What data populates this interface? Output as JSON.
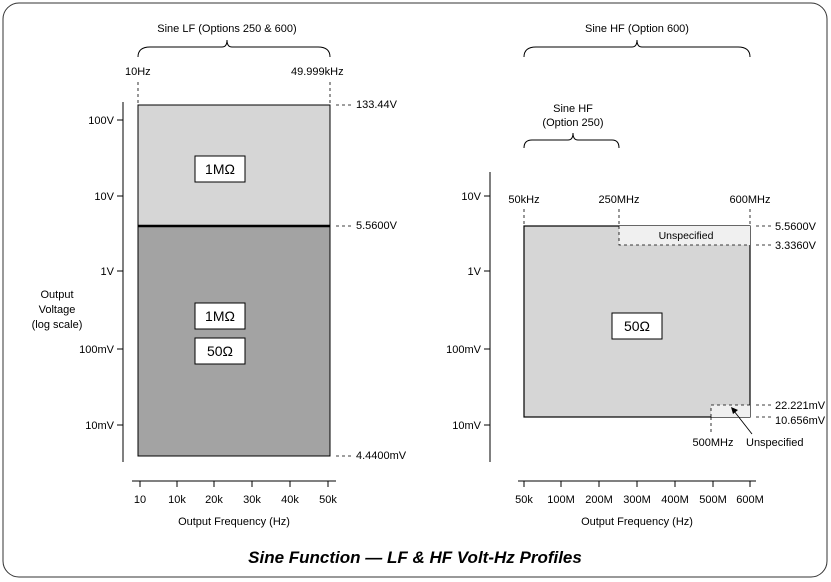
{
  "title": "Sine Function — LF & HF Volt-Hz Profiles",
  "y_axis_label": [
    "Output",
    "Voltage",
    "(log scale)"
  ],
  "lf": {
    "heading": "Sine LF (Options 250 & 600)",
    "freq_start": "10Hz",
    "freq_end": "49.999kHz",
    "y_ticks": [
      "100V",
      "10V",
      "1V",
      "100mV",
      "10mV"
    ],
    "level_labels": [
      "133.44V",
      "5.5600V",
      "4.4400mV"
    ],
    "upper_box": "1MΩ",
    "lower_boxes": [
      "1MΩ",
      "50Ω"
    ],
    "x_ticks": [
      "10",
      "10k",
      "20k",
      "30k",
      "40k",
      "50k"
    ],
    "x_label": "Output Frequency (Hz)",
    "colors": {
      "upper": "#d6d6d6",
      "lower": "#a3a3a3"
    }
  },
  "hf": {
    "heading": "Sine HF (Option 600)",
    "sub_heading": [
      "Sine HF",
      "(Option 250)"
    ],
    "freq_top_labels": [
      "50kHz",
      "250MHz",
      "600MHz"
    ],
    "y_ticks": [
      "10V",
      "1V",
      "100mV",
      "10mV"
    ],
    "level_labels": [
      "5.5600V",
      "3.3360V",
      "22.221mV",
      "10.656mV"
    ],
    "unspecified_top": "Unspecified",
    "unspecified_bottom": "Unspecified",
    "marker_500": "500MHz",
    "main_box": "50Ω",
    "x_ticks": [
      "50k",
      "100M",
      "200M",
      "300M",
      "400M",
      "500M",
      "600M"
    ],
    "x_label": "Output Frequency (Hz)",
    "colors": {
      "main": "#d6d6d6",
      "unspecified": "#f0f0f0"
    }
  }
}
